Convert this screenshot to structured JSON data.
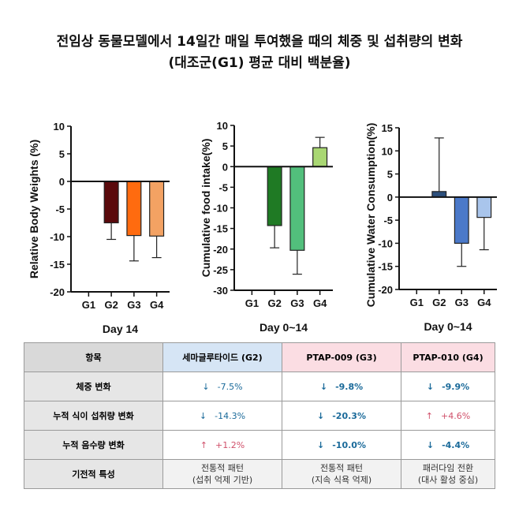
{
  "title": {
    "line1": "전임상 동물모델에서 14일간 매일 투여했을 때의 체중 및 섭취량의 변화",
    "line2": "(대조군(G1) 평균 대비 백분율)"
  },
  "chart_data": [
    {
      "type": "bar",
      "ylabel": "Relative Body Weights (%)",
      "xlabel": "Day 14",
      "categories": [
        "G1",
        "G2",
        "G3",
        "G4"
      ],
      "values": [
        0,
        -7.5,
        -9.8,
        -9.9
      ],
      "error_ends": [
        null,
        -10.5,
        -14.4,
        -13.8
      ],
      "ylim": [
        -20,
        10
      ],
      "yticks": [
        10,
        5,
        0,
        -5,
        -10,
        -15,
        -20
      ],
      "colors": [
        "#ffffff",
        "#5a0a0c",
        "#ff6b0f",
        "#f3a263"
      ]
    },
    {
      "type": "bar",
      "ylabel": "Cumulative food intake(%)",
      "xlabel": "Day 0~14",
      "categories": [
        "G1",
        "G2",
        "G3",
        "G4"
      ],
      "values": [
        0,
        -14.3,
        -20.3,
        4.6
      ],
      "error_ends": [
        null,
        -19.7,
        -26.1,
        7.1
      ],
      "ylim": [
        -30,
        10
      ],
      "yticks": [
        10,
        5,
        0,
        -5,
        -10,
        -15,
        -20,
        -25,
        -30
      ],
      "colors": [
        "#ffffff",
        "#1f7a24",
        "#52bf7c",
        "#a9d773"
      ]
    },
    {
      "type": "bar",
      "ylabel": "Cumulative Water Consumption(%)",
      "xlabel": "Day 0~14",
      "categories": [
        "G1",
        "G2",
        "G3",
        "G4"
      ],
      "values": [
        0,
        1.2,
        -10.0,
        -4.4
      ],
      "error_ends": [
        null,
        12.8,
        -15.0,
        -11.4
      ],
      "ylim": [
        -20,
        15
      ],
      "yticks": [
        15,
        10,
        5,
        0,
        -5,
        -10,
        -15,
        -20
      ],
      "colors": [
        "#ffffff",
        "#2c4f7c",
        "#4b79c9",
        "#a9c5ec"
      ]
    }
  ],
  "table": {
    "headers": [
      "항목",
      "세마글루타이드 (G2)",
      "PTAP-009 (G3)",
      "PTAP-010 (G4)"
    ],
    "rows": [
      {
        "label": "체중 변화",
        "cells": [
          {
            "arrow": "↓",
            "value": "-7.5%",
            "dir": "down"
          },
          {
            "arrow": "↓",
            "value": "-9.8%",
            "dir": "down"
          },
          {
            "arrow": "↓",
            "value": "-9.9%",
            "dir": "down"
          }
        ]
      },
      {
        "label": "누적 식이 섭취량 변화",
        "cells": [
          {
            "arrow": "↓",
            "value": "-14.3%",
            "dir": "down"
          },
          {
            "arrow": "↓",
            "value": "-20.3%",
            "dir": "down"
          },
          {
            "arrow": "↑",
            "value": "+4.6%",
            "dir": "up"
          }
        ]
      },
      {
        "label": "누적 음수량 변화",
        "cells": [
          {
            "arrow": "↑",
            "value": "+1.2%",
            "dir": "up"
          },
          {
            "arrow": "↓",
            "value": "-10.0%",
            "dir": "down"
          },
          {
            "arrow": "↓",
            "value": "-4.4%",
            "dir": "down"
          }
        ]
      }
    ],
    "mechanism": {
      "label": "기전적 특성",
      "cells": [
        {
          "line1": "전통적 패턴",
          "line2": "(섭취 억제 기반)"
        },
        {
          "line1": "전통적 패턴",
          "line2": "(지속 식욕 억제)"
        },
        {
          "line1": "패러다임 전환",
          "line2": "(대사 활성 중심)"
        }
      ]
    }
  }
}
